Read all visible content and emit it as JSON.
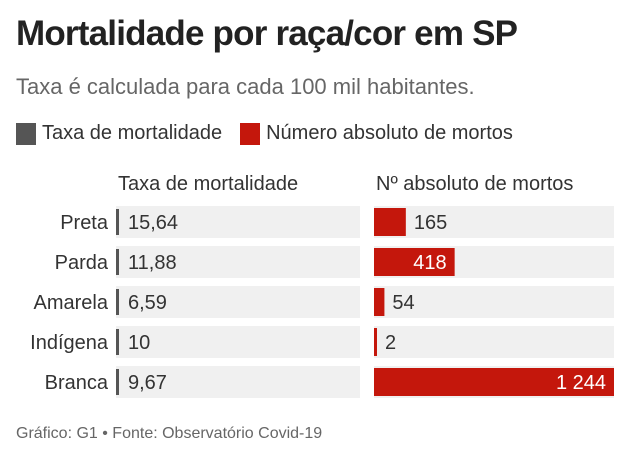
{
  "title": "Mortalidade por raça/cor em SP",
  "subtitle": "Taxa é calculada para cada 100 mil habitantes.",
  "legend": [
    {
      "label": "Taxa de mortalidade",
      "color": "#555555"
    },
    {
      "label": "Número absoluto de mortos",
      "color": "#c4170c"
    }
  ],
  "columns": {
    "rate": "Taxa de mortalidade",
    "absolute": "Nº absoluto de mortos"
  },
  "footer": "Gráfico: G1 • Fonte: Observatório Covid-19",
  "colors": {
    "rate_bar": "#555555",
    "abs_bar": "#c4170c",
    "row_bg": "#f0f0f0",
    "text": "#333333"
  },
  "chart_data": {
    "type": "bar",
    "categories": [
      "Preta",
      "Parda",
      "Amarela",
      "Indígena",
      "Branca"
    ],
    "series": [
      {
        "name": "Taxa de mortalidade",
        "values": [
          15.64,
          11.88,
          6.59,
          10,
          9.67
        ],
        "labels": [
          "15,64",
          "11,88",
          "6,59",
          "10",
          "9,67"
        ]
      },
      {
        "name": "Número absoluto de mortos",
        "values": [
          165,
          418,
          54,
          2,
          1244
        ],
        "labels": [
          "165",
          "418",
          "54",
          "2",
          "1 244"
        ]
      }
    ]
  }
}
